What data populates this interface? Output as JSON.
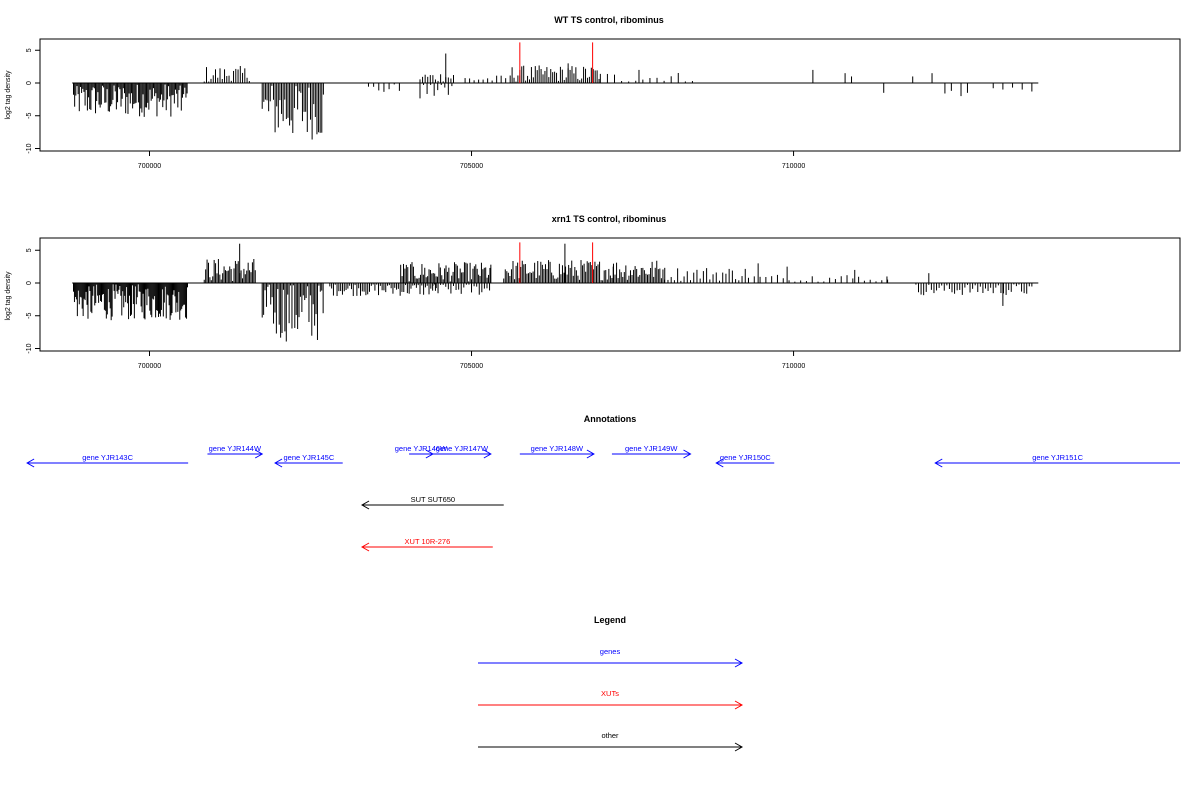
{
  "chart_data": [
    {
      "type": "bar",
      "title": "WT TS control, ribominus",
      "ylabel": "log2 tag density",
      "xlim": [
        698300,
        716000
      ],
      "ylim": [
        -10.5,
        6.5
      ],
      "xticks": [
        700000,
        705000,
        710000
      ],
      "xtick_labels": [
        "700000",
        "705000",
        "710000"
      ],
      "yticks": [
        5,
        0,
        -5,
        -10
      ],
      "ytick_labels": [
        "5",
        "0",
        "-5",
        "-10"
      ],
      "baseline": [
        698800,
        713800
      ],
      "highlight_color": "#ff0000",
      "bar_color": "#000000",
      "series": [
        {
          "segments": [
            {
              "start": 698820,
              "end": 700600,
              "mean": -2.6,
              "amp": 2.6,
              "step": 18
            },
            {
              "start": 700850,
              "end": 701550,
              "mean": 1.3,
              "amp": 1.3,
              "step": 35
            },
            {
              "start": 701750,
              "end": 702700,
              "mean": -4.2,
              "amp": 4.5,
              "step": 25
            },
            {
              "start": 703400,
              "end": 703900,
              "mean": -0.9,
              "amp": 0.8,
              "step": 80
            },
            {
              "start": 704200,
              "end": 704700,
              "mean": -1.3,
              "amp": 1.3,
              "step": 55
            },
            {
              "start": 704200,
              "end": 704750,
              "mean": 0.9,
              "amp": 0.8,
              "step": 40
            },
            {
              "start": 704900,
              "end": 705550,
              "mean": 0.6,
              "amp": 0.6,
              "step": 70
            },
            {
              "start": 705600,
              "end": 707000,
              "mean": 1.4,
              "amp": 1.3,
              "step": 30
            },
            {
              "start": 707000,
              "end": 708500,
              "mean": 0.8,
              "amp": 0.9,
              "step": 110
            }
          ],
          "bars": [
            {
              "x": 704600,
              "y": 4.5
            },
            {
              "x": 705750,
              "y": 2.0
            },
            {
              "x": 706500,
              "y": 3.0
            },
            {
              "x": 707600,
              "y": 2.0
            },
            {
              "x": 710300,
              "y": 2.0
            },
            {
              "x": 710800,
              "y": 1.5
            },
            {
              "x": 710900,
              "y": 1.0
            },
            {
              "x": 711400,
              "y": -1.5
            },
            {
              "x": 711850,
              "y": 1.0
            },
            {
              "x": 712150,
              "y": 1.5
            },
            {
              "x": 712350,
              "y": -1.6
            },
            {
              "x": 712450,
              "y": -1.2
            },
            {
              "x": 712600,
              "y": -2.0
            },
            {
              "x": 712700,
              "y": -1.5
            },
            {
              "x": 713100,
              "y": -0.8
            },
            {
              "x": 713250,
              "y": -1.0
            },
            {
              "x": 713400,
              "y": -0.7
            },
            {
              "x": 713550,
              "y": -1.0
            },
            {
              "x": 713700,
              "y": -1.3
            }
          ],
          "highlights": [
            {
              "x": 705750,
              "y": 6.2
            },
            {
              "x": 706880,
              "y": 6.2
            }
          ]
        }
      ]
    },
    {
      "type": "bar",
      "title": "xrn1 TS control, ribominus",
      "ylabel": "log2 tag density",
      "xlim": [
        698300,
        716000
      ],
      "ylim": [
        -10.5,
        6.5
      ],
      "xticks": [
        700000,
        705000,
        710000
      ],
      "xtick_labels": [
        "700000",
        "705000",
        "710000"
      ],
      "yticks": [
        5,
        0,
        -5,
        -10
      ],
      "ytick_labels": [
        "5",
        "0",
        "-5",
        "-10"
      ],
      "baseline": [
        698800,
        713800
      ],
      "highlight_color": "#ff0000",
      "bar_color": "#000000",
      "series": [
        {
          "segments": [
            {
              "start": 698820,
              "end": 700600,
              "mean": -2.9,
              "amp": 2.8,
              "step": 15
            },
            {
              "start": 700850,
              "end": 701650,
              "mean": 2.0,
              "amp": 1.8,
              "step": 22
            },
            {
              "start": 701750,
              "end": 702700,
              "mean": -4.2,
              "amp": 4.8,
              "step": 22
            },
            {
              "start": 702800,
              "end": 704500,
              "mean": -1.0,
              "amp": 1.0,
              "step": 28
            },
            {
              "start": 703900,
              "end": 705300,
              "mean": 1.7,
              "amp": 1.5,
              "step": 22
            },
            {
              "start": 704400,
              "end": 705300,
              "mean": -1.0,
              "amp": 0.9,
              "step": 40
            },
            {
              "start": 705500,
              "end": 708000,
              "mean": 2.0,
              "amp": 1.6,
              "step": 24
            },
            {
              "start": 708000,
              "end": 709300,
              "mean": 1.4,
              "amp": 1.1,
              "step": 50
            },
            {
              "start": 709300,
              "end": 711500,
              "mean": 0.7,
              "amp": 0.7,
              "step": 90
            },
            {
              "start": 711900,
              "end": 713700,
              "mean": -1.0,
              "amp": 0.9,
              "step": 40
            }
          ],
          "bars": [
            {
              "x": 701400,
              "y": 6.0
            },
            {
              "x": 705300,
              "y": 2.8
            },
            {
              "x": 706450,
              "y": 6.0
            },
            {
              "x": 707200,
              "y": 2.5
            },
            {
              "x": 709450,
              "y": 3.0
            },
            {
              "x": 709900,
              "y": 2.5
            },
            {
              "x": 710950,
              "y": 2.0
            },
            {
              "x": 711450,
              "y": 1.0
            },
            {
              "x": 712100,
              "y": 1.5
            },
            {
              "x": 713250,
              "y": -3.5
            }
          ],
          "highlights": [
            {
              "x": 705750,
              "y": 6.2
            },
            {
              "x": 706880,
              "y": 6.2
            }
          ]
        }
      ]
    }
  ],
  "annotations": {
    "title": "Annotations",
    "items": [
      {
        "label": "gene YJR143C",
        "kind": "gene",
        "color": "#0000ff",
        "dir": "left",
        "start": 698100,
        "end": 700600,
        "row": 0
      },
      {
        "label": "gene YJR144W",
        "kind": "gene",
        "color": "#0000ff",
        "dir": "right",
        "start": 700900,
        "end": 701750,
        "row": -1
      },
      {
        "label": "gene YJR145C",
        "kind": "gene",
        "color": "#0000ff",
        "dir": "left",
        "start": 701950,
        "end": 703000,
        "row": 0
      },
      {
        "label": "gene YJR146W",
        "kind": "gene",
        "color": "#0000ff",
        "dir": "right",
        "start": 704030,
        "end": 704400,
        "row": -1
      },
      {
        "label": "gene YJR147W",
        "kind": "gene",
        "color": "#0000ff",
        "dir": "right",
        "start": 704400,
        "end": 705300,
        "row": -1
      },
      {
        "label": "gene YJR148W",
        "kind": "gene",
        "color": "#0000ff",
        "dir": "right",
        "start": 705750,
        "end": 706900,
        "row": -1
      },
      {
        "label": "gene YJR149W",
        "kind": "gene",
        "color": "#0000ff",
        "dir": "right",
        "start": 707180,
        "end": 708400,
        "row": -1
      },
      {
        "label": "gene YJR150C",
        "kind": "gene",
        "color": "#0000ff",
        "dir": "left",
        "start": 708800,
        "end": 709700,
        "row": 0
      },
      {
        "label": "gene YJR151C",
        "kind": "gene",
        "color": "#0000ff",
        "dir": "left",
        "start": 712200,
        "end": 716000,
        "row": 0
      },
      {
        "label": "SUT SUT650",
        "kind": "other",
        "color": "#000000",
        "dir": "left",
        "start": 703300,
        "end": 705500,
        "row": 1
      },
      {
        "label": "XUT 10R-276",
        "kind": "xut",
        "color": "#ff0000",
        "dir": "left",
        "start": 703300,
        "end": 705330,
        "row": 2
      }
    ]
  },
  "legend": {
    "title": "Legend",
    "items": [
      {
        "label": "genes",
        "color": "#0000ff"
      },
      {
        "label": "XUTs",
        "color": "#ff0000"
      },
      {
        "label": "other",
        "color": "#000000"
      }
    ]
  }
}
